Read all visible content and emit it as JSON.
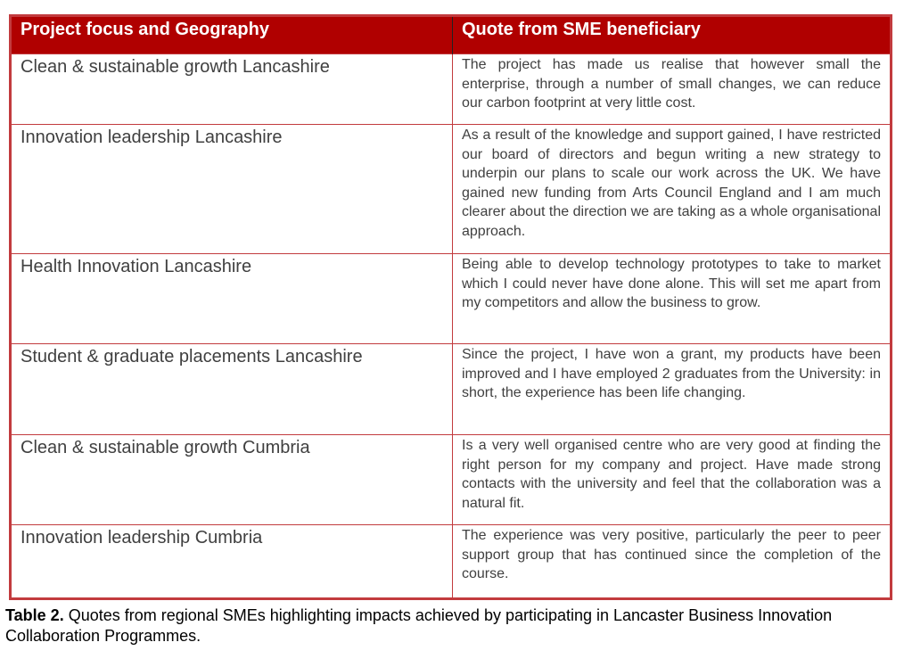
{
  "table": {
    "headers": [
      "Project focus and Geography",
      "Quote from SME beneficiary"
    ],
    "rows": [
      {
        "focus": "Clean & sustainable growth Lancashire",
        "quote": "The project has made us realise that however small the enterprise, through a number of small changes, we can reduce our carbon footprint at very little cost."
      },
      {
        "focus": "Innovation leadership Lancashire",
        "quote": "As a result of the knowledge and support gained, I have restricted our board of directors and begun writing a new strategy to underpin our plans to scale our work across the UK.  We have gained new funding from Arts Council England and I am much clearer about the direction we are taking as a whole organisational approach."
      },
      {
        "focus": "Health Innovation Lancashire",
        "quote": "Being able to develop technology prototypes to take to market which I could never have done alone.  This will set me apart from my competitors and allow the business to grow."
      },
      {
        "focus": "Student & graduate placements Lancashire",
        "quote": "Since the project, I have won a grant, my products have been improved and I have employed 2 graduates from the University: in short, the experience has been life changing."
      },
      {
        "focus": "Clean & sustainable growth Cumbria",
        "quote": "Is a very well organised centre who are very good at finding the right person for my company and project. Have made strong contacts with the university and feel that the collaboration was a natural fit."
      },
      {
        "focus": "Innovation leadership Cumbria",
        "quote": "The experience was very positive, particularly the peer to peer support group that has continued since the completion of the course."
      }
    ]
  },
  "caption": {
    "label": "Table 2.",
    "text": " Quotes from regional SMEs highlighting impacts achieved by participating in Lancaster Business Innovation Collaboration Programmes."
  },
  "colors": {
    "header_bg": "#b00000",
    "border": "#c23b3e"
  }
}
